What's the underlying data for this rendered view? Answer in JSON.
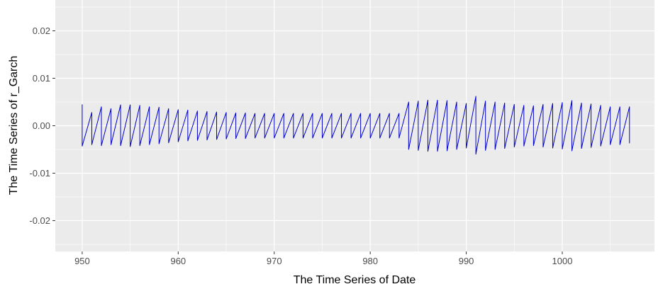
{
  "chart_data": {
    "type": "line",
    "title": "",
    "xlabel": "The Time Series of Date",
    "ylabel": "The Time Series of r_Garch",
    "xlim": [
      947.2,
      1009.6
    ],
    "ylim": [
      -0.0265,
      0.0265
    ],
    "x_ticks": [
      950,
      960,
      970,
      980,
      990,
      1000
    ],
    "x_tick_labels": [
      "950",
      "960",
      "970",
      "980",
      "990",
      "1000"
    ],
    "y_ticks": [
      -0.02,
      -0.01,
      0.0,
      0.01,
      0.02
    ],
    "y_tick_labels": [
      "-0.02",
      "-0.01",
      "0.00",
      "0.01",
      "0.02"
    ],
    "grid": true,
    "background": "#ebebeb",
    "grid_color": "#ffffff",
    "line_color": "#0000cd",
    "series": [
      {
        "name": "",
        "color": "#0000cd",
        "points": [
          [
            950.0,
            0.0045
          ],
          [
            950.0,
            -0.0043
          ],
          [
            951.0,
            0.0028
          ],
          [
            951.0,
            -0.004
          ],
          [
            952.0,
            0.004
          ],
          [
            952.0,
            -0.0042
          ],
          [
            953.0,
            0.0036
          ],
          [
            953.0,
            -0.004
          ],
          [
            954.0,
            0.0044
          ],
          [
            954.0,
            -0.0042
          ],
          [
            955.0,
            0.0044
          ],
          [
            955.0,
            -0.0044
          ],
          [
            956.0,
            0.0043
          ],
          [
            956.0,
            -0.0042
          ],
          [
            957.0,
            0.004
          ],
          [
            957.0,
            -0.004
          ],
          [
            958.0,
            0.0039
          ],
          [
            958.0,
            -0.0038
          ],
          [
            959.0,
            0.0036
          ],
          [
            959.0,
            -0.0036
          ],
          [
            960.0,
            0.0034
          ],
          [
            960.0,
            -0.0034
          ],
          [
            961.0,
            0.0033
          ],
          [
            961.0,
            -0.0032
          ],
          [
            962.0,
            0.0031
          ],
          [
            962.0,
            -0.0031
          ],
          [
            963.0,
            0.003
          ],
          [
            963.0,
            -0.003
          ],
          [
            964.0,
            0.0029
          ],
          [
            964.0,
            -0.0029
          ],
          [
            965.0,
            0.0028
          ],
          [
            965.0,
            -0.0028
          ],
          [
            966.0,
            0.0027
          ],
          [
            966.0,
            -0.0027
          ],
          [
            967.0,
            0.0027
          ],
          [
            967.0,
            -0.0027
          ],
          [
            968.0,
            0.0026
          ],
          [
            968.0,
            -0.0026
          ],
          [
            969.0,
            0.0026
          ],
          [
            969.0,
            -0.0026
          ],
          [
            970.0,
            0.0026
          ],
          [
            970.0,
            -0.0026
          ],
          [
            971.0,
            0.0026
          ],
          [
            971.0,
            -0.0026
          ],
          [
            972.0,
            0.0026
          ],
          [
            972.0,
            -0.0026
          ],
          [
            973.0,
            0.0026
          ],
          [
            973.0,
            -0.0026
          ],
          [
            974.0,
            0.0026
          ],
          [
            974.0,
            -0.0026
          ],
          [
            975.0,
            0.0026
          ],
          [
            975.0,
            -0.0026
          ],
          [
            976.0,
            0.0026
          ],
          [
            976.0,
            -0.0026
          ],
          [
            977.0,
            0.0026
          ],
          [
            977.0,
            -0.0026
          ],
          [
            978.0,
            0.0026
          ],
          [
            978.0,
            -0.0026
          ],
          [
            979.0,
            0.0026
          ],
          [
            979.0,
            -0.0026
          ],
          [
            980.0,
            0.0026
          ],
          [
            980.0,
            -0.0026
          ],
          [
            981.0,
            0.0026
          ],
          [
            981.0,
            -0.0026
          ],
          [
            982.0,
            0.0026
          ],
          [
            982.0,
            -0.0026
          ],
          [
            983.0,
            0.0026
          ],
          [
            983.0,
            -0.0026
          ],
          [
            984.0,
            0.005
          ],
          [
            984.0,
            -0.005
          ],
          [
            985.0,
            0.0052
          ],
          [
            985.0,
            -0.0052
          ],
          [
            986.0,
            0.0054
          ],
          [
            986.0,
            -0.0054
          ],
          [
            987.0,
            0.0054
          ],
          [
            987.0,
            -0.0054
          ],
          [
            988.0,
            0.0053
          ],
          [
            988.0,
            -0.0053
          ],
          [
            989.0,
            0.005
          ],
          [
            989.0,
            -0.005
          ],
          [
            990.0,
            0.0047
          ],
          [
            990.0,
            -0.0047
          ],
          [
            991.0,
            0.0062
          ],
          [
            991.0,
            -0.006
          ],
          [
            992.0,
            0.0052
          ],
          [
            992.0,
            -0.0052
          ],
          [
            993.0,
            0.005
          ],
          [
            993.0,
            -0.005
          ],
          [
            994.0,
            0.0048
          ],
          [
            994.0,
            -0.0048
          ],
          [
            995.0,
            0.0045
          ],
          [
            995.0,
            -0.0045
          ],
          [
            996.0,
            0.0043
          ],
          [
            996.0,
            -0.0043
          ],
          [
            997.0,
            0.0042
          ],
          [
            997.0,
            -0.0042
          ],
          [
            998.0,
            0.0045
          ],
          [
            998.0,
            -0.0045
          ],
          [
            999.0,
            0.0047
          ],
          [
            999.0,
            -0.0047
          ],
          [
            1000.0,
            0.0049
          ],
          [
            1000.0,
            -0.0049
          ],
          [
            1001.0,
            0.0053
          ],
          [
            1001.0,
            -0.0053
          ],
          [
            1002.0,
            0.0048
          ],
          [
            1002.0,
            -0.0048
          ],
          [
            1003.0,
            0.0046
          ],
          [
            1003.0,
            -0.0046
          ],
          [
            1004.0,
            0.0043
          ],
          [
            1004.0,
            -0.0043
          ],
          [
            1005.0,
            0.004
          ],
          [
            1005.0,
            -0.004
          ],
          [
            1006.0,
            0.004
          ],
          [
            1006.0,
            -0.004
          ],
          [
            1007.0,
            0.004
          ],
          [
            1007.0,
            -0.0037
          ]
        ]
      }
    ]
  }
}
